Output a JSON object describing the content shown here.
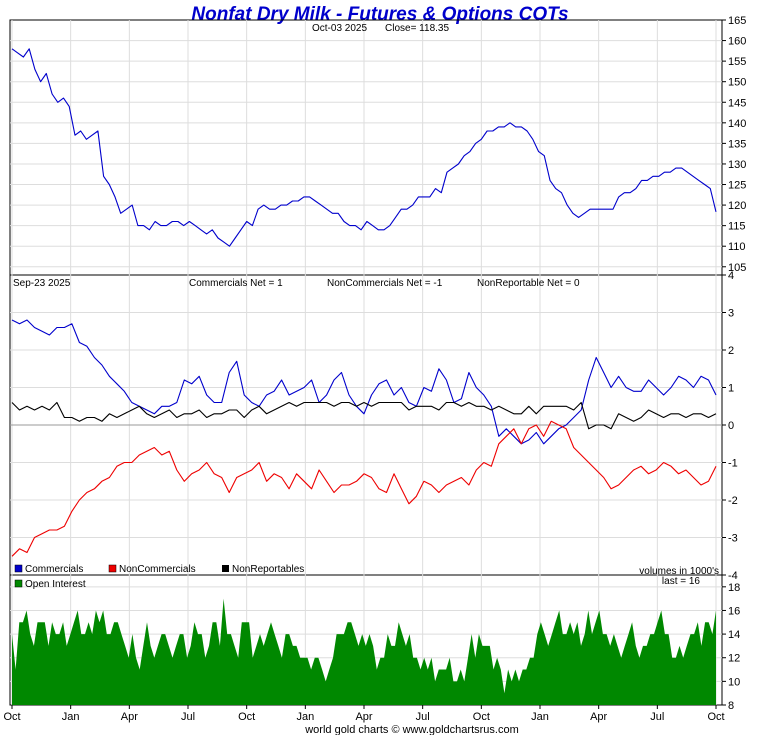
{
  "chart_data": {
    "type": "line",
    "title": "Nonfat Dry Milk - Futures & Options COTs",
    "footer": "world gold charts © www.goldchartsrus.com",
    "x_labels": [
      "Oct",
      "Jan",
      "Apr",
      "Jul",
      "Oct",
      "Jan",
      "Apr",
      "Jul",
      "Oct",
      "Jan",
      "Apr",
      "Jul",
      "Oct"
    ],
    "colors": {
      "price": "#0000cc",
      "commercials": "#0000cc",
      "noncommercials": "#ee0000",
      "nonreportables": "#000000",
      "open_interest": "#008800",
      "grid": "#dddddd"
    },
    "price_panel": {
      "date_label": "Oct-03  2025",
      "close_label": "Close= 118.35",
      "ylim": [
        103,
        165
      ],
      "yticks": [
        105,
        110,
        115,
        120,
        125,
        130,
        135,
        140,
        145,
        150,
        155,
        160,
        165
      ],
      "series": [
        {
          "name": "Price",
          "values": [
            158,
            157,
            156,
            158,
            153,
            150,
            152,
            147,
            145,
            146,
            144,
            137,
            138,
            136,
            137,
            138,
            127,
            125,
            122,
            118,
            119,
            120,
            115,
            115,
            114,
            116,
            115,
            115,
            116,
            116,
            115,
            116,
            115,
            114,
            113,
            114,
            112,
            111,
            110,
            112,
            114,
            116,
            115,
            119,
            120,
            119,
            119,
            120,
            120,
            121,
            121,
            122,
            122,
            121,
            120,
            119,
            118,
            118,
            116,
            115,
            115,
            114,
            116,
            115,
            114,
            114,
            115,
            117,
            119,
            119,
            120,
            122,
            122,
            122,
            124,
            123,
            128,
            129,
            130,
            132,
            133,
            135,
            136,
            138,
            138,
            139,
            139,
            140,
            139,
            139,
            138,
            136,
            133,
            132,
            126,
            124,
            123,
            120,
            118,
            117,
            118,
            119,
            119,
            119,
            119,
            119,
            122,
            123,
            123,
            124,
            126,
            126,
            127,
            127,
            128,
            128,
            129,
            129,
            128,
            127,
            126,
            125,
            124,
            118.35
          ]
        }
      ]
    },
    "cot_panel": {
      "date_label": "Sep-23  2025",
      "commercials_label": "Commercials Net = 1",
      "noncommercials_label": "NonCommercials Net = -1",
      "nonreportable_label": "NonReportable Net = 0",
      "ylim": [
        -4,
        4
      ],
      "yticks": [
        -4,
        -3,
        -2,
        -1,
        0,
        1,
        2,
        3,
        4
      ],
      "legend": [
        "Commercials",
        "NonCommercials",
        "NonReportables"
      ],
      "series": [
        {
          "name": "Commercials",
          "values": [
            2.8,
            2.7,
            2.8,
            2.6,
            2.5,
            2.4,
            2.6,
            2.6,
            2.7,
            2.2,
            2.1,
            1.8,
            1.6,
            1.3,
            1.1,
            0.9,
            0.6,
            0.5,
            0.4,
            0.3,
            0.5,
            0.5,
            0.6,
            1.2,
            1.1,
            1.3,
            0.8,
            0.6,
            0.6,
            1.4,
            1.7,
            0.8,
            0.6,
            0.5,
            0.8,
            0.9,
            1.2,
            0.8,
            0.9,
            1.0,
            1.2,
            0.6,
            0.8,
            1.2,
            1.4,
            0.8,
            0.5,
            0.3,
            0.8,
            1.1,
            1.2,
            0.8,
            1.0,
            0.6,
            0.5,
            1.0,
            0.9,
            1.5,
            1.2,
            0.6,
            0.7,
            1.4,
            1.0,
            0.8,
            0.5,
            -0.3,
            -0.1,
            -0.3,
            -0.5,
            -0.4,
            -0.2,
            -0.5,
            -0.3,
            -0.1,
            0.0,
            0.2,
            0.4,
            1.2,
            1.8,
            1.4,
            1.0,
            1.3,
            1.0,
            0.9,
            0.9,
            1.2,
            1.0,
            0.8,
            1.0,
            1.3,
            1.2,
            1.0,
            1.3,
            1.2,
            0.8
          ]
        },
        {
          "name": "NonCommercials",
          "values": [
            -3.5,
            -3.3,
            -3.4,
            -3.0,
            -2.9,
            -2.8,
            -2.8,
            -2.7,
            -2.3,
            -2.0,
            -1.8,
            -1.7,
            -1.5,
            -1.4,
            -1.1,
            -1.0,
            -1.0,
            -0.8,
            -0.7,
            -0.6,
            -0.8,
            -0.7,
            -1.2,
            -1.5,
            -1.3,
            -1.2,
            -1.0,
            -1.3,
            -1.4,
            -1.8,
            -1.4,
            -1.3,
            -1.2,
            -1.0,
            -1.5,
            -1.3,
            -1.4,
            -1.7,
            -1.3,
            -1.5,
            -1.7,
            -1.2,
            -1.5,
            -1.8,
            -1.6,
            -1.6,
            -1.5,
            -1.3,
            -1.4,
            -1.7,
            -1.8,
            -1.3,
            -1.7,
            -2.1,
            -1.9,
            -1.5,
            -1.6,
            -1.8,
            -1.6,
            -1.5,
            -1.4,
            -1.6,
            -1.2,
            -1.0,
            -1.1,
            -0.5,
            -0.3,
            -0.1,
            -0.5,
            -0.1,
            0.0,
            -0.3,
            0.1,
            0.0,
            -0.1,
            -0.6,
            -0.8,
            -1.0,
            -1.2,
            -1.4,
            -1.7,
            -1.6,
            -1.4,
            -1.2,
            -1.1,
            -1.3,
            -1.2,
            -1.0,
            -1.1,
            -1.3,
            -1.2,
            -1.4,
            -1.6,
            -1.5,
            -1.1
          ]
        },
        {
          "name": "NonReportables",
          "values": [
            0.6,
            0.4,
            0.5,
            0.4,
            0.5,
            0.4,
            0.6,
            0.2,
            0.2,
            0.1,
            0.2,
            0.2,
            0.1,
            0.3,
            0.2,
            0.3,
            0.4,
            0.5,
            0.3,
            0.2,
            0.3,
            0.4,
            0.2,
            0.3,
            0.3,
            0.4,
            0.2,
            0.3,
            0.3,
            0.4,
            0.4,
            0.2,
            0.4,
            0.5,
            0.3,
            0.4,
            0.5,
            0.6,
            0.5,
            0.6,
            0.6,
            0.6,
            0.6,
            0.5,
            0.6,
            0.6,
            0.5,
            0.6,
            0.5,
            0.6,
            0.6,
            0.6,
            0.6,
            0.4,
            0.5,
            0.5,
            0.5,
            0.4,
            0.6,
            0.6,
            0.5,
            0.6,
            0.5,
            0.5,
            0.4,
            0.5,
            0.4,
            0.3,
            0.3,
            0.5,
            0.3,
            0.5,
            0.5,
            0.5,
            0.5,
            0.4,
            0.6,
            -0.1,
            0.0,
            0.0,
            -0.1,
            0.3,
            0.2,
            0.1,
            0.2,
            0.4,
            0.3,
            0.2,
            0.3,
            0.3,
            0.2,
            0.3,
            0.3,
            0.2,
            0.3
          ]
        }
      ]
    },
    "oi_panel": {
      "legend": "Open Interest",
      "units_label": "volumes in 1000's",
      "last_label": "last = 16",
      "ylim": [
        8,
        19
      ],
      "yticks": [
        8,
        10,
        12,
        14,
        16,
        18
      ],
      "series": [
        {
          "name": "Open Interest",
          "values": [
            14,
            11,
            15,
            15,
            16,
            14,
            13,
            15,
            15,
            15,
            13,
            15,
            14,
            14,
            15,
            13,
            14,
            15,
            16,
            14,
            14,
            15,
            14,
            16,
            15,
            16,
            14,
            14,
            15,
            15,
            14,
            13,
            12,
            14,
            12,
            11,
            13,
            15,
            13,
            12,
            13,
            14,
            14,
            13,
            12,
            13,
            14,
            14,
            12,
            13,
            15,
            14,
            14,
            12,
            13,
            15,
            15,
            13,
            17,
            14,
            14,
            13,
            12,
            15,
            15,
            15,
            12,
            13,
            14,
            13,
            14,
            15,
            14,
            13,
            12,
            14,
            14,
            13,
            13,
            12,
            12,
            12,
            11,
            12,
            12,
            11,
            10,
            11,
            12,
            14,
            14,
            14,
            15,
            15,
            14,
            13,
            14,
            13,
            14,
            13,
            11,
            12,
            12,
            14,
            13,
            13,
            15,
            14,
            13,
            14,
            12,
            12,
            11,
            12,
            11,
            12,
            10,
            11,
            11,
            11,
            12,
            10,
            10,
            11,
            10,
            12,
            14,
            12,
            14,
            13,
            13,
            13,
            11,
            12,
            11,
            9,
            11,
            10,
            11,
            10,
            11,
            11,
            12,
            12,
            14,
            15,
            14,
            13,
            14,
            15,
            16,
            14,
            14,
            15,
            14,
            15,
            13,
            14,
            16,
            14,
            15,
            16,
            14,
            14,
            13,
            14,
            13,
            12,
            13,
            14,
            15,
            13,
            12,
            13,
            13,
            14,
            14,
            15,
            16,
            14,
            14,
            12,
            12,
            13,
            12,
            13,
            14,
            14,
            15,
            13,
            15,
            15,
            14,
            16
          ]
        }
      ]
    }
  }
}
